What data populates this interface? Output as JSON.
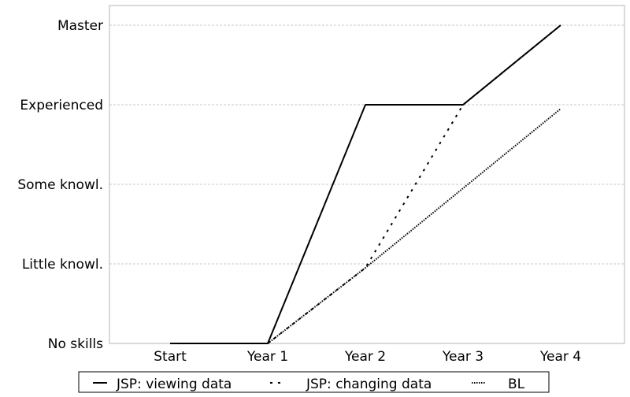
{
  "chart_data": {
    "type": "line",
    "title": "",
    "xlabel": "",
    "ylabel": "",
    "categories": [
      "Start",
      "Year 1",
      "Year 2",
      "Year 3",
      "Year 4"
    ],
    "y_tick_labels": [
      "No skills",
      "Little knowl.",
      "Some knowl.",
      "Experienced",
      "Master"
    ],
    "ylim": [
      0,
      4
    ],
    "grid": true,
    "legend_position": "bottom",
    "series": [
      {
        "name": "JSP: viewing data",
        "style": "solid",
        "x": [
          0,
          1,
          2,
          3,
          4
        ],
        "values": [
          0,
          0,
          3,
          3,
          4
        ]
      },
      {
        "name": "JSP: changing data",
        "style": "dashed",
        "x": [
          1,
          2,
          3,
          4
        ],
        "values": [
          0,
          0.95,
          3,
          4
        ]
      },
      {
        "name": "BL",
        "style": "dotted",
        "x": [
          1,
          2,
          3,
          4
        ],
        "values": [
          0,
          0.95,
          1.95,
          2.95
        ]
      }
    ],
    "colors": {
      "line": "#000000",
      "grid": "#c8c8c8",
      "frame": "#b4b4b4"
    }
  }
}
